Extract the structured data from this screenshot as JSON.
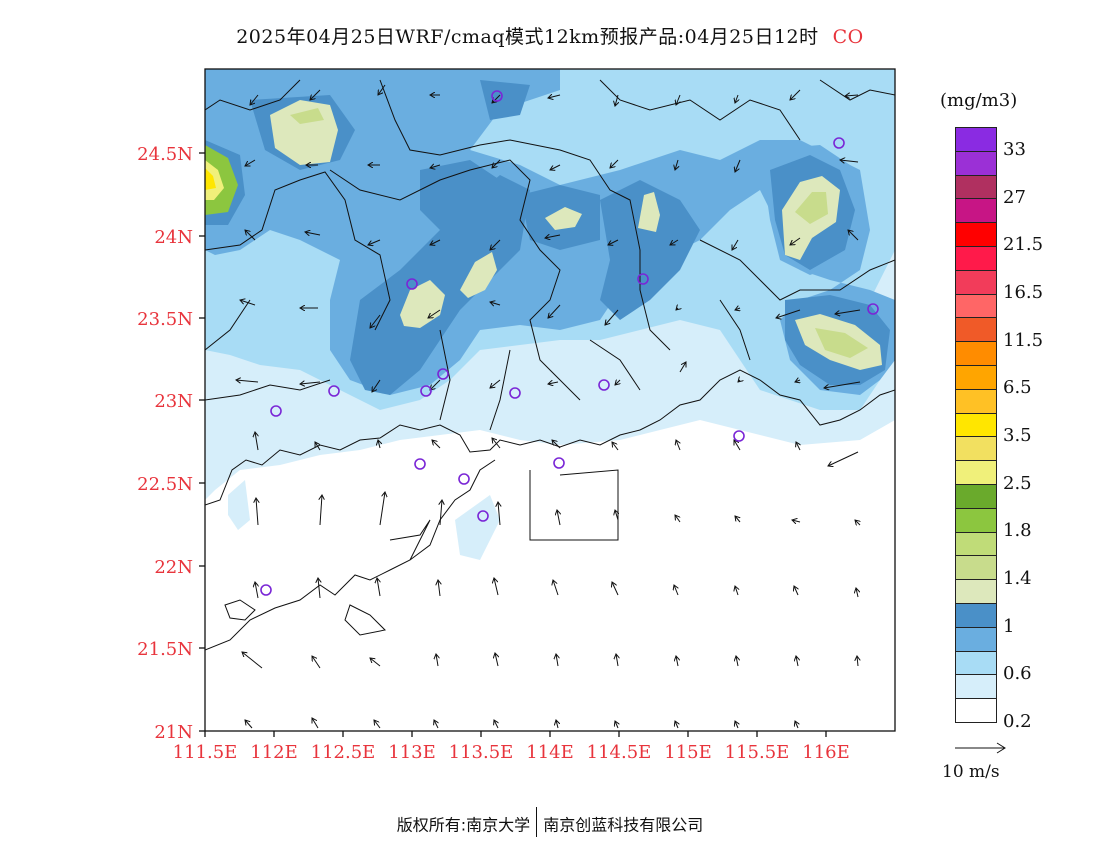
{
  "header": {
    "title": "2025年04月25日WRF/cmaq模式12km预报产品:04月25日12时",
    "variable": "CO"
  },
  "map": {
    "lat_labels": [
      "24.5N",
      "24N",
      "23.5N",
      "23N",
      "22.5N",
      "22N",
      "21.5N",
      "21N"
    ],
    "lon_labels": [
      "111.5E",
      "112E",
      "112.5E",
      "113E",
      "113.5E",
      "114E",
      "114.5E",
      "115E",
      "115.5E",
      "116E"
    ],
    "axis_label_color": "#e8343c",
    "station_marker_color": "#7a26d6",
    "wind_arrow_color": "#111111"
  },
  "legend": {
    "unit": "(mg/m3)",
    "colors": [
      "#8a2be2",
      "#9b30d6",
      "#b03060",
      "#c71585",
      "#ff0000",
      "#ff1a4a",
      "#f23c5a",
      "#ff6666",
      "#f05a28",
      "#ff8c00",
      "#ffa500",
      "#ffc125",
      "#ffe600",
      "#f2e060",
      "#f0f07a",
      "#6aaa2c",
      "#8cc63f",
      "#c0dc78",
      "#c8dc8c",
      "#dde8bc",
      "#4a90c8",
      "#6aaee0",
      "#a8dcf5",
      "#d6eefa",
      "#ffffff"
    ],
    "labels": [
      "33",
      "27",
      "21.5",
      "16.5",
      "11.5",
      "6.5",
      "3.5",
      "2.5",
      "1.8",
      "1.4",
      "1",
      "0.6",
      "0.2"
    ]
  },
  "wind_reference": {
    "label": "10 m/s"
  },
  "footer": {
    "left": "版权所有:南京大学",
    "right": "南京创蓝科技有限公司"
  }
}
